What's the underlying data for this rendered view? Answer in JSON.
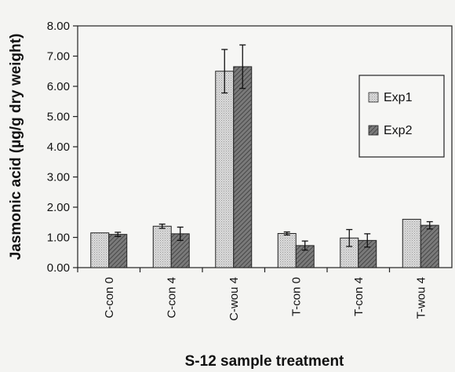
{
  "chart_data": {
    "type": "bar",
    "xlabel": "S-12 sample treatment",
    "ylabel": "Jasmonic acid (µg/g dry weight)",
    "ylim": [
      0,
      8
    ],
    "yticks": [
      "0.00",
      "1.00",
      "2.00",
      "3.00",
      "4.00",
      "5.00",
      "6.00",
      "7.00",
      "8.00"
    ],
    "categories": [
      "C-con 0",
      "C-con 4",
      "C-wou 4",
      "T-con 0",
      "T-con 4",
      "T-wou 4"
    ],
    "series": [
      {
        "name": "Exp1",
        "values": [
          1.15,
          1.37,
          6.5,
          1.13,
          0.98,
          1.6
        ],
        "errors": [
          0.0,
          0.07,
          0.72,
          0.05,
          0.28,
          0.0
        ],
        "color": "#d4d4d4",
        "pattern": "dots"
      },
      {
        "name": "Exp2",
        "values": [
          1.1,
          1.12,
          6.65,
          0.73,
          0.9,
          1.4
        ],
        "errors": [
          0.07,
          0.22,
          0.72,
          0.15,
          0.22,
          0.12
        ],
        "color": "#6e6e6e",
        "pattern": "hatch"
      }
    ],
    "legend_position": "right",
    "grid": false
  }
}
